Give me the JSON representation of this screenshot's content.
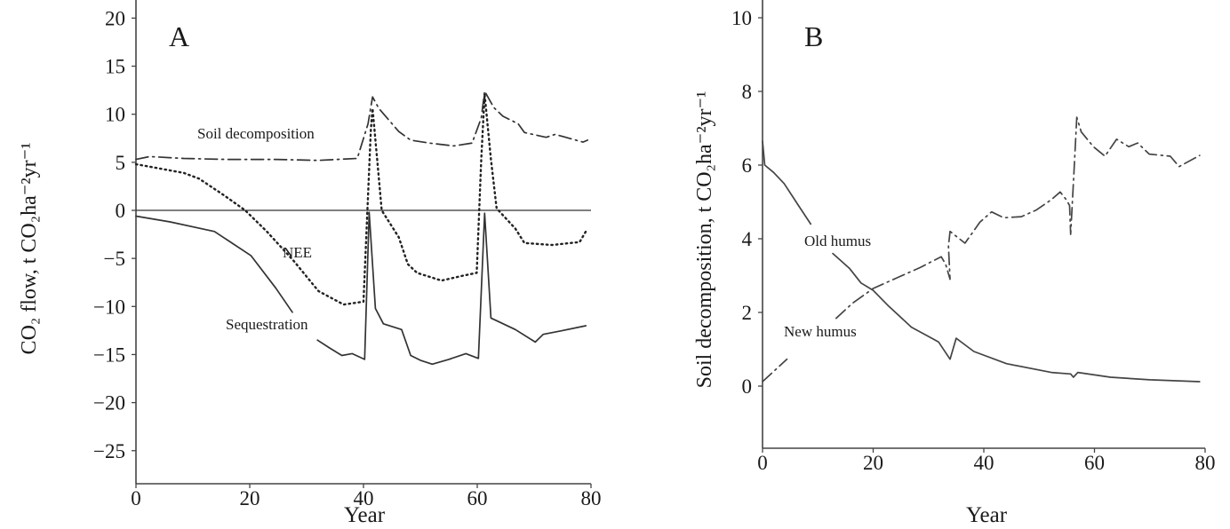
{
  "chart_data": [
    {
      "type": "line",
      "panel_label": "A",
      "xlabel": "Year",
      "ylabel": "CO₂ flow, t CO₂ha⁻²yr⁻¹",
      "xlim": [
        0,
        80
      ],
      "ylim": [
        -25,
        20
      ],
      "xticks": [
        0,
        20,
        40,
        60,
        80
      ],
      "yticks": [
        20,
        15,
        10,
        5,
        0,
        -5,
        -10,
        -15,
        -20,
        -25
      ],
      "ytick_labels": [
        "20",
        "15",
        "10",
        "5",
        "0",
        "−5",
        "−10",
        "−15",
        "−20",
        "−25"
      ],
      "grid": false,
      "zero_line": true,
      "series": [
        {
          "name": "Soil decomposition",
          "style": "dash-dot",
          "color": "#333333",
          "points": [
            [
              0,
              5.3
            ],
            [
              2.4,
              5.6
            ],
            [
              8.4,
              5.4
            ],
            [
              16,
              5.3
            ],
            [
              24.6,
              5.3
            ],
            [
              32,
              5.2
            ],
            [
              38.9,
              5.4
            ],
            [
              40.8,
              9
            ],
            [
              41.6,
              11.8
            ],
            [
              42.7,
              10.6
            ],
            [
              46.2,
              8.2
            ],
            [
              48.3,
              7.3
            ],
            [
              51.6,
              7
            ],
            [
              55.9,
              6.7
            ],
            [
              59.1,
              7
            ],
            [
              60.7,
              9.6
            ],
            [
              61.3,
              12.4
            ],
            [
              62.9,
              10.7
            ],
            [
              64.5,
              9.8
            ],
            [
              67.2,
              9
            ],
            [
              68.3,
              8.1
            ],
            [
              72.1,
              7.6
            ],
            [
              73.7,
              7.9
            ],
            [
              78.6,
              7.1
            ],
            [
              79.4,
              7.3
            ]
          ]
        },
        {
          "name": "NEE",
          "style": "dotted",
          "color": "#222222",
          "points": [
            [
              0,
              4.8
            ],
            [
              8.4,
              3.9
            ],
            [
              11.1,
              3.3
            ],
            [
              15.4,
              1.6
            ],
            [
              19.2,
              0
            ],
            [
              23,
              -2.2
            ],
            [
              27.8,
              -5.3
            ],
            [
              32.1,
              -8.4
            ],
            [
              36.5,
              -9.8
            ],
            [
              40,
              -9.5
            ],
            [
              41.3,
              8.4
            ],
            [
              41.6,
              10.6
            ],
            [
              42.4,
              5.3
            ],
            [
              43.2,
              0
            ],
            [
              46.2,
              -2.8
            ],
            [
              47.8,
              -5.6
            ],
            [
              49.4,
              -6.5
            ],
            [
              53.7,
              -7.3
            ],
            [
              57.5,
              -6.8
            ],
            [
              59.9,
              -6.5
            ],
            [
              60.7,
              5.3
            ],
            [
              61.3,
              12.1
            ],
            [
              62.4,
              5.3
            ],
            [
              63.4,
              0.2
            ],
            [
              66.7,
              -1.9
            ],
            [
              68.3,
              -3.4
            ],
            [
              73.2,
              -3.6
            ],
            [
              78,
              -3.3
            ],
            [
              79.1,
              -2.2
            ]
          ]
        },
        {
          "name": "Sequestration",
          "style": "solid",
          "color": "#333333",
          "points": [
            [
              0,
              -0.6
            ],
            [
              6,
              -1.2
            ],
            [
              13.8,
              -2.2
            ],
            [
              20.2,
              -4.7
            ],
            [
              24.6,
              -8.1
            ],
            [
              27.5,
              -10.6
            ],
            null,
            [
              31.9,
              -13.5
            ],
            [
              34,
              -14.3
            ],
            [
              36.2,
              -15.1
            ],
            [
              38,
              -14.9
            ],
            [
              40.2,
              -15.5
            ],
            [
              41,
              -0.2
            ],
            [
              42.1,
              -10.2
            ],
            [
              43.5,
              -11.8
            ],
            [
              46.7,
              -12.4
            ],
            [
              48.3,
              -15.1
            ],
            [
              50,
              -15.6
            ],
            [
              52.1,
              -16
            ],
            [
              55,
              -15.5
            ],
            [
              58,
              -14.9
            ],
            [
              60.2,
              -15.4
            ],
            [
              61.3,
              -0.3
            ],
            [
              62.4,
              -11.2
            ],
            [
              66.7,
              -12.4
            ],
            [
              70.2,
              -13.7
            ],
            [
              71.6,
              -12.9
            ],
            [
              75,
              -12.5
            ],
            [
              79.1,
              -12
            ]
          ]
        }
      ]
    },
    {
      "type": "line",
      "panel_label": "B",
      "xlabel": "Year",
      "ylabel": "Soil decomposition, t CO₂ha⁻²yr⁻¹",
      "xlim": [
        0,
        80
      ],
      "ylim": [
        0,
        10
      ],
      "xticks": [
        0,
        20,
        40,
        60,
        80
      ],
      "yticks": [
        0,
        2,
        4,
        6,
        8,
        10
      ],
      "ytick_labels": [
        "0",
        "2",
        "4",
        "6",
        "8",
        "10"
      ],
      "grid": false,
      "series": [
        {
          "name": "Old humus",
          "style": "solid",
          "color": "#444444",
          "points": [
            [
              0,
              6.65
            ],
            [
              0.4,
              6.0
            ],
            [
              2,
              5.8
            ],
            [
              3.9,
              5.5
            ],
            [
              6.5,
              4.9
            ],
            [
              8.7,
              4.4
            ],
            null,
            [
              12.7,
              3.6
            ],
            [
              15.7,
              3.2
            ],
            [
              17.8,
              2.8
            ],
            [
              20,
              2.6
            ],
            [
              22.6,
              2.2
            ],
            [
              26.9,
              1.6
            ],
            [
              31.8,
              1.2
            ],
            [
              33.9,
              0.73
            ],
            [
              35,
              1.3
            ],
            [
              38.2,
              0.94
            ],
            [
              44.1,
              0.61
            ],
            [
              52.2,
              0.37
            ],
            [
              55.7,
              0.33
            ],
            [
              56.2,
              0.24
            ],
            [
              57,
              0.37
            ],
            [
              62.9,
              0.24
            ],
            [
              70,
              0.17
            ],
            [
              79,
              0.12
            ]
          ]
        },
        {
          "name": "New humus",
          "style": "dash-dot",
          "color": "#444444",
          "points": [
            [
              0,
              0.12
            ],
            [
              4.4,
              0.73
            ],
            null,
            [
              13.3,
              1.84
            ],
            [
              16.2,
              2.24
            ],
            [
              20,
              2.65
            ],
            [
              24.3,
              2.94
            ],
            [
              28.5,
              3.22
            ],
            [
              30.7,
              3.39
            ],
            [
              32.3,
              3.51
            ],
            [
              33.1,
              3.31
            ],
            [
              33.9,
              2.9
            ],
            [
              33.6,
              3.8
            ],
            [
              33.9,
              4.2
            ],
            [
              36.6,
              3.88
            ],
            [
              39.3,
              4.45
            ],
            [
              41.4,
              4.73
            ],
            [
              43.6,
              4.57
            ],
            [
              46.8,
              4.6
            ],
            [
              49.5,
              4.78
            ],
            [
              52.2,
              5.06
            ],
            [
              53.8,
              5.27
            ],
            [
              54.9,
              5.06
            ],
            [
              55.5,
              4.9
            ],
            [
              55.7,
              4.12
            ],
            [
              56.3,
              5.84
            ],
            [
              56.8,
              7.3
            ],
            [
              57.6,
              6.9
            ],
            [
              59.8,
              6.5
            ],
            [
              61.9,
              6.24
            ],
            [
              64,
              6.7
            ],
            [
              66.2,
              6.5
            ],
            [
              67.8,
              6.6
            ],
            [
              69.9,
              6.3
            ],
            [
              73.7,
              6.24
            ],
            [
              75.3,
              5.96
            ],
            [
              79,
              6.26
            ]
          ]
        }
      ]
    }
  ]
}
